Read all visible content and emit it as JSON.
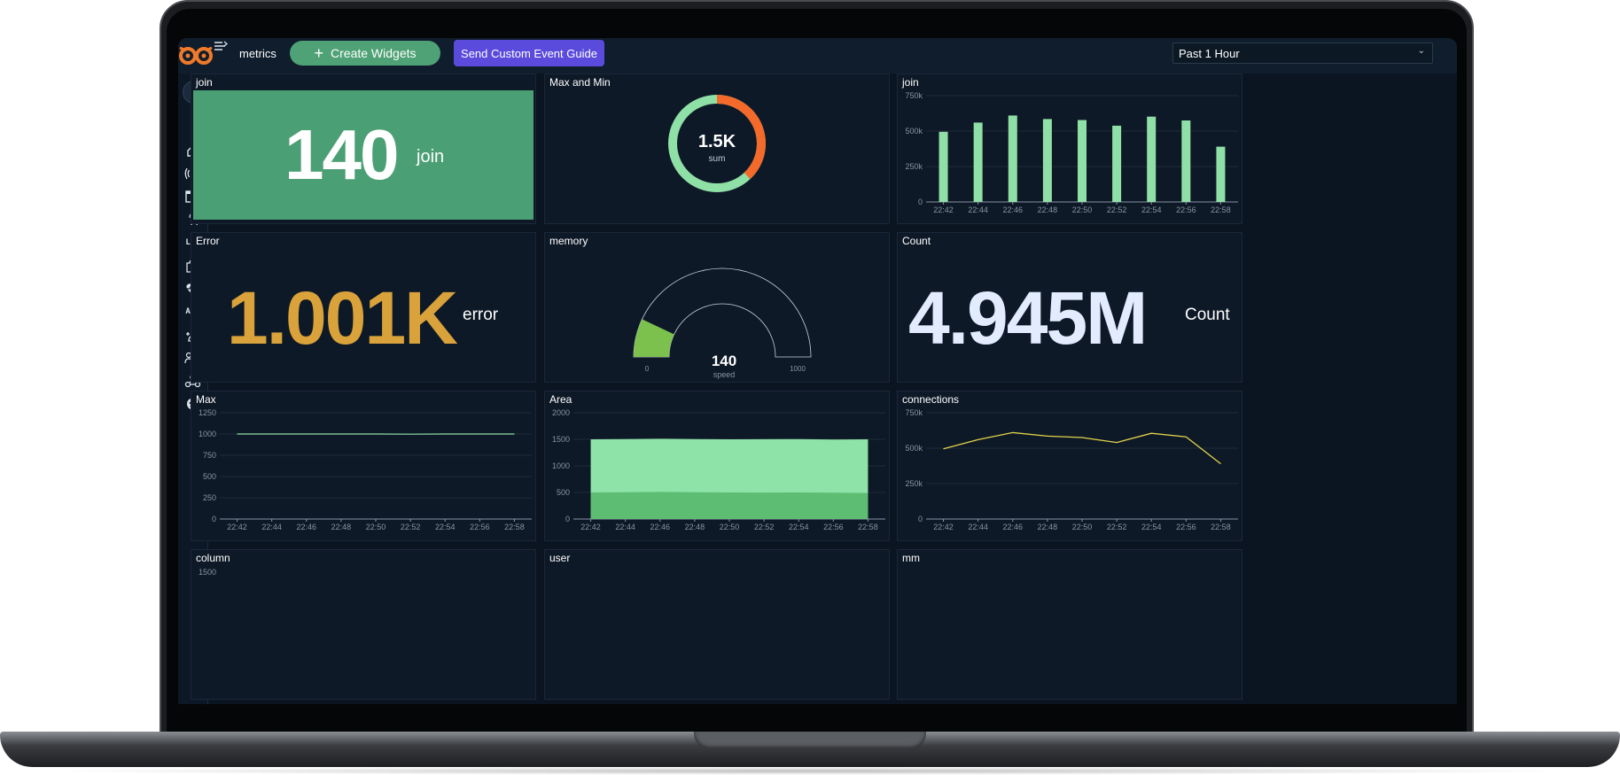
{
  "app": {
    "title": "metrics",
    "create_button": "Create Widgets",
    "guide_button": "Send Custom Event Guide",
    "time_range": "Past 1 Hour"
  },
  "sidebar": {
    "items": [
      "home-icon",
      "broadcast-icon",
      "dashboard-add-icon",
      "touch-icon",
      "LOG",
      "extension-icon",
      "heartbeat-icon",
      "API",
      "add-user-icon",
      "user-list-icon",
      "webhook-icon",
      "bot-icon"
    ]
  },
  "panels": {
    "join_stat": {
      "title": "join",
      "value": "140",
      "unit": "join",
      "bg": "#4b9f74"
    },
    "max_min": {
      "title": "Max and Min",
      "value": "1.5K",
      "label": "sum",
      "colors": [
        "#f36a2b",
        "#8fe0a6"
      ],
      "split": 0.38
    },
    "join_bar": {
      "title": "join"
    },
    "error_stat": {
      "title": "Error",
      "value": "1.001K",
      "unit": "error",
      "color": "#d9a23b"
    },
    "memory": {
      "title": "memory",
      "value": "140",
      "label": "speed",
      "min": "0",
      "max": "1000",
      "fraction": 0.14,
      "color": "#7cc04e"
    },
    "count_stat": {
      "title": "Count",
      "value": "4.945M",
      "unit": "Count",
      "color": "#e3ebff"
    },
    "max_line": {
      "title": "Max"
    },
    "area": {
      "title": "Area"
    },
    "connections": {
      "title": "connections"
    },
    "column": {
      "title": "column",
      "tick": "1500"
    },
    "user": {
      "title": "user"
    },
    "mm": {
      "title": "mm"
    }
  },
  "chart_data": [
    {
      "type": "bar",
      "panel": "join",
      "categories": [
        "22:42",
        "22:44",
        "22:46",
        "22:48",
        "22:50",
        "22:52",
        "22:54",
        "22:56",
        "22:58"
      ],
      "values": [
        495000,
        560000,
        610000,
        585000,
        578000,
        538000,
        602000,
        575000,
        390000
      ],
      "yticks": [
        "0",
        "250k",
        "500k",
        "750k"
      ],
      "ylim": [
        0,
        750000
      ],
      "color": "#8fe0a6"
    },
    {
      "type": "line",
      "panel": "Max",
      "x": [
        "22:42",
        "22:44",
        "22:46",
        "22:48",
        "22:50",
        "22:52",
        "22:54",
        "22:56",
        "22:58"
      ],
      "values": [
        1000,
        1000,
        1000,
        1000,
        1000,
        998,
        1000,
        1000,
        1000
      ],
      "yticks": [
        "0",
        "250",
        "500",
        "750",
        "1000",
        "1250"
      ],
      "ylim": [
        0,
        1250
      ],
      "color": "#8fe0a6"
    },
    {
      "type": "area",
      "panel": "Area",
      "x": [
        "22:42",
        "22:44",
        "22:46",
        "22:48",
        "22:50",
        "22:52",
        "22:54",
        "22:56",
        "22:58"
      ],
      "series": [
        {
          "values": [
            500,
            505,
            510,
            505,
            500,
            498,
            500,
            495,
            490
          ],
          "color": "#5dbd73"
        },
        {
          "values": [
            1500,
            1505,
            1510,
            1505,
            1500,
            1502,
            1505,
            1495,
            1500
          ],
          "color": "#8ee3a8"
        }
      ],
      "yticks": [
        "0",
        "500",
        "1000",
        "1500",
        "2000"
      ],
      "ylim": [
        0,
        2000
      ]
    },
    {
      "type": "line",
      "panel": "connections",
      "x": [
        "22:42",
        "22:44",
        "22:46",
        "22:48",
        "22:50",
        "22:52",
        "22:54",
        "22:56",
        "22:58"
      ],
      "values": [
        495000,
        560000,
        610000,
        585000,
        575000,
        540000,
        605000,
        580000,
        390000
      ],
      "yticks": [
        "0",
        "250k",
        "500k",
        "750k"
      ],
      "ylim": [
        0,
        750000
      ],
      "color": "#e3d34a"
    }
  ]
}
